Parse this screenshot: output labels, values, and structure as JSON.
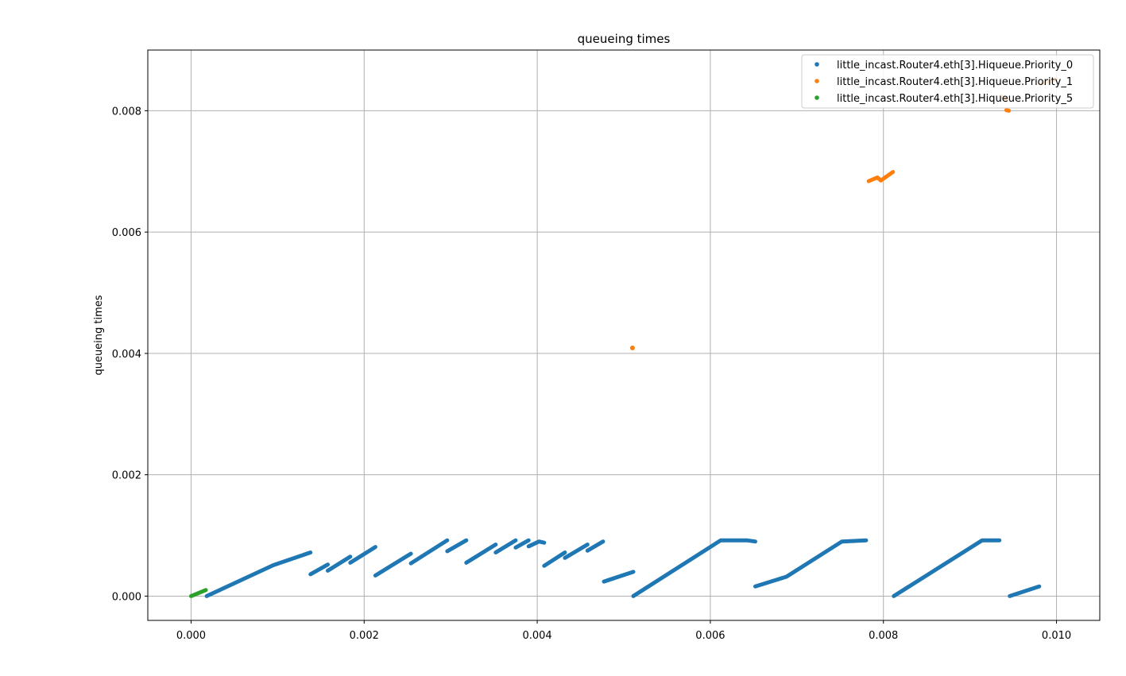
{
  "chart_data": {
    "type": "scatter",
    "title": "queueing times",
    "xlabel": "",
    "ylabel": "queueing times",
    "xlim": [
      -0.0005,
      0.0105
    ],
    "ylim": [
      -0.0004,
      0.009
    ],
    "xticks": [
      "0.000",
      "0.002",
      "0.004",
      "0.006",
      "0.008",
      "0.010"
    ],
    "xtick_values": [
      0.0,
      0.002,
      0.004,
      0.006,
      0.008,
      0.01
    ],
    "yticks": [
      "0.000",
      "0.002",
      "0.004",
      "0.006",
      "0.008"
    ],
    "ytick_values": [
      0.0,
      0.002,
      0.004,
      0.006,
      0.008
    ],
    "grid": true,
    "legend_position": "top-right",
    "series": [
      {
        "name": "little_incast.Router4.eth[3].Hiqueue.Priority_0",
        "color": "#1f77b4",
        "segments": [
          [
            [
              0.00018,
              0.0
            ],
            [
              0.00095,
              0.00051
            ],
            [
              0.00138,
              0.00072
            ]
          ],
          [
            [
              0.00138,
              0.00036
            ],
            [
              0.00158,
              0.00052
            ]
          ],
          [
            [
              0.00158,
              0.00042
            ],
            [
              0.00184,
              0.00065
            ]
          ],
          [
            [
              0.00184,
              0.00055
            ],
            [
              0.00213,
              0.00081
            ]
          ],
          [
            [
              0.00213,
              0.00034
            ],
            [
              0.00254,
              0.0007
            ]
          ],
          [
            [
              0.00254,
              0.00054
            ],
            [
              0.00296,
              0.00092
            ]
          ],
          [
            [
              0.00296,
              0.00074
            ],
            [
              0.00318,
              0.00092
            ]
          ],
          [
            [
              0.00318,
              0.00055
            ],
            [
              0.00352,
              0.00085
            ]
          ],
          [
            [
              0.00352,
              0.00072
            ],
            [
              0.00375,
              0.00092
            ]
          ],
          [
            [
              0.00375,
              0.0008
            ],
            [
              0.0039,
              0.00092
            ]
          ],
          [
            [
              0.0039,
              0.00082
            ],
            [
              0.00402,
              0.0009
            ],
            [
              0.00408,
              0.00088
            ]
          ],
          [
            [
              0.00408,
              0.0005
            ],
            [
              0.00432,
              0.00072
            ]
          ],
          [
            [
              0.00432,
              0.00063
            ],
            [
              0.00458,
              0.00085
            ]
          ],
          [
            [
              0.00458,
              0.00075
            ],
            [
              0.00476,
              0.0009
            ]
          ],
          [
            [
              0.00477,
              0.00024
            ],
            [
              0.00511,
              0.0004
            ]
          ],
          [
            [
              0.00511,
              0.0
            ],
            [
              0.00612,
              0.00092
            ],
            [
              0.00642,
              0.00092
            ],
            [
              0.00652,
              0.0009
            ]
          ],
          [
            [
              0.00652,
              0.00016
            ],
            [
              0.00688,
              0.00032
            ],
            [
              0.00752,
              0.0009
            ],
            [
              0.0078,
              0.00092
            ]
          ],
          [
            [
              0.00812,
              0.0
            ],
            [
              0.00914,
              0.00092
            ],
            [
              0.00934,
              0.00092
            ]
          ],
          [
            [
              0.00946,
              0.0
            ],
            [
              0.0098,
              0.00016
            ]
          ]
        ],
        "points": []
      },
      {
        "name": "little_incast.Router4.eth[3].Hiqueue.Priority_1",
        "color": "#ff7f0e",
        "segments": [
          [
            [
              0.00783,
              0.00684
            ],
            [
              0.00793,
              0.0069
            ],
            [
              0.00797,
              0.00685
            ],
            [
              0.00811,
              0.00699
            ]
          ],
          [
            [
              0.00936,
              0.00824
            ],
            [
              0.00943,
              0.00818
            ]
          ],
          [
            [
              0.00942,
              0.00801
            ],
            [
              0.00945,
              0.008
            ]
          ],
          [
            [
              0.00983,
              0.00845
            ],
            [
              0.00999,
              0.00852
            ]
          ]
        ],
        "points": [
          [
            0.0051,
            0.00409
          ]
        ]
      },
      {
        "name": "little_incast.Router4.eth[3].Hiqueue.Priority_5",
        "color": "#2ca02c",
        "segments": [
          [
            [
              0.0,
              0.0
            ],
            [
              0.00017,
              0.0001
            ]
          ]
        ],
        "points": []
      }
    ]
  }
}
